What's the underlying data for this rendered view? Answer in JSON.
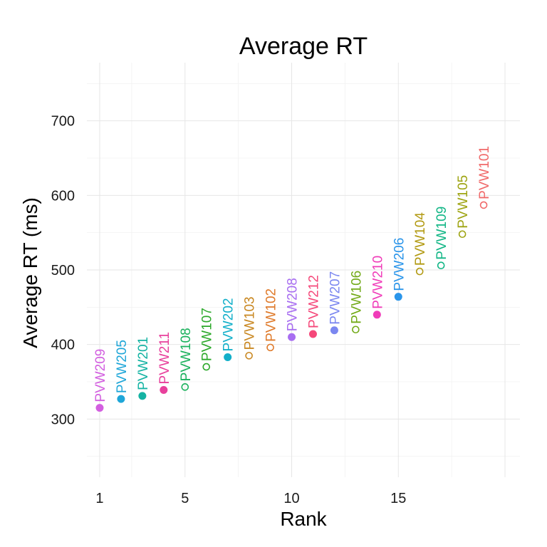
{
  "chart_data": {
    "type": "scatter",
    "title": "Average RT",
    "xlabel": "Rank",
    "ylabel": "Average RT (ms)",
    "xlim": [
      0.4,
      20.7
    ],
    "ylim": [
      222,
      778
    ],
    "x_ticks": [
      1,
      5,
      10,
      15
    ],
    "y_ticks": [
      300,
      400,
      500,
      600,
      700
    ],
    "grid": true,
    "legend": "none",
    "points": [
      {
        "rank": 1,
        "value": 315,
        "label": "PVW209",
        "filled": true,
        "color": "#d35fe0"
      },
      {
        "rank": 2,
        "value": 327,
        "label": "PVW205",
        "filled": true,
        "color": "#1ea6d8"
      },
      {
        "rank": 3,
        "value": 331,
        "label": "PVW201",
        "filled": true,
        "color": "#15b3a3"
      },
      {
        "rank": 4,
        "value": 339,
        "label": "PVW211",
        "filled": true,
        "color": "#e8409c"
      },
      {
        "rank": 5,
        "value": 343,
        "label": "PVW108",
        "filled": false,
        "color": "#1ab15c"
      },
      {
        "rank": 6,
        "value": 370,
        "label": "PVW107",
        "filled": false,
        "color": "#2ba82a"
      },
      {
        "rank": 7,
        "value": 383,
        "label": "PVW202",
        "filled": true,
        "color": "#12afc9"
      },
      {
        "rank": 8,
        "value": 385,
        "label": "PVW103",
        "filled": false,
        "color": "#c98822"
      },
      {
        "rank": 9,
        "value": 396,
        "label": "PVW102",
        "filled": false,
        "color": "#df7a2a"
      },
      {
        "rank": 10,
        "value": 410,
        "label": "PVW208",
        "filled": true,
        "color": "#a86ef1"
      },
      {
        "rank": 11,
        "value": 414,
        "label": "PVW212",
        "filled": true,
        "color": "#f5487a"
      },
      {
        "rank": 12,
        "value": 419,
        "label": "PVW207",
        "filled": true,
        "color": "#7b87f0"
      },
      {
        "rank": 13,
        "value": 420,
        "label": "PVW106",
        "filled": false,
        "color": "#72aa18"
      },
      {
        "rank": 14,
        "value": 440,
        "label": "PVW210",
        "filled": true,
        "color": "#f03cb9"
      },
      {
        "rank": 15,
        "value": 464,
        "label": "PVW206",
        "filled": true,
        "color": "#2a95ea"
      },
      {
        "rank": 16,
        "value": 498,
        "label": "PVW104",
        "filled": false,
        "color": "#b29a12"
      },
      {
        "rank": 17,
        "value": 506,
        "label": "PVW109",
        "filled": false,
        "color": "#12b686"
      },
      {
        "rank": 18,
        "value": 548,
        "label": "PVW105",
        "filled": false,
        "color": "#9ea412"
      },
      {
        "rank": 19,
        "value": 587,
        "label": "PVW101",
        "filled": false,
        "color": "#f06a6a"
      }
    ]
  }
}
